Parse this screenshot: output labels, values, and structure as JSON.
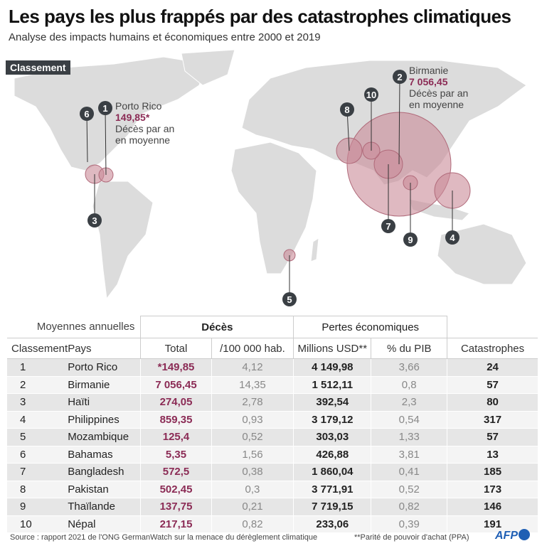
{
  "title": "Les pays les plus frappés par des catastrophes climatiques",
  "subtitle": "Analyse des impacts humains et économiques entre 2000 et 2019",
  "map": {
    "tag": "Classement",
    "annotation_1": {
      "country": "Porto Rico",
      "value": "149,85*",
      "label_line1": "Décès par an",
      "label_line2": "en moyenne"
    },
    "annotation_2": {
      "country": "Birmanie",
      "value": "7 056,45",
      "label_line1": "Décès par an",
      "label_line2": "en moyenne"
    },
    "markers": [
      "1",
      "2",
      "3",
      "4",
      "5",
      "6",
      "7",
      "8",
      "9",
      "10"
    ],
    "bubble_color": "#c98a97"
  },
  "table": {
    "group_label": "Moyennes annuelles",
    "group_deces": "Décès",
    "group_pertes": "Pertes économiques",
    "columns": [
      "Classement",
      "Pays",
      "Total",
      "/100 000 hab.",
      "Millions USD**",
      "% du PIB",
      "Catastrophes"
    ],
    "rows": [
      [
        "1",
        "Porto Rico",
        "*149,85",
        "4,12",
        "4 149,98",
        "3,66",
        "24"
      ],
      [
        "2",
        "Birmanie",
        "7 056,45",
        "14,35",
        "1 512,11",
        "0,8",
        "57"
      ],
      [
        "3",
        "Haïti",
        "274,05",
        "2,78",
        "392,54",
        "2,3",
        "80"
      ],
      [
        "4",
        "Philippines",
        "859,35",
        "0,93",
        "3 179,12",
        "0,54",
        "317"
      ],
      [
        "5",
        "Mozambique",
        "125,4",
        "0,52",
        "303,03",
        "1,33",
        "57"
      ],
      [
        "6",
        "Bahamas",
        "5,35",
        "1,56",
        "426,88",
        "3,81",
        "13"
      ],
      [
        "7",
        "Bangladesh",
        "572,5",
        "0,38",
        "1 860,04",
        "0,41",
        "185"
      ],
      [
        "8",
        "Pakistan",
        "502,45",
        "0,3",
        "3 771,91",
        "0,52",
        "173"
      ],
      [
        "9",
        "Thaïlande",
        "137,75",
        "0,21",
        "7 719,15",
        "0,82",
        "146"
      ],
      [
        "10",
        "Népal",
        "217,15",
        "0,82",
        "233,06",
        "0,39",
        "191"
      ]
    ]
  },
  "footer": {
    "source": "Source : rapport 2021 de l'ONG GermanWatch sur la menace du dérèglement climatique",
    "note": "**Parité de pouvoir d'achat (PPA)",
    "logo": "AFP"
  }
}
